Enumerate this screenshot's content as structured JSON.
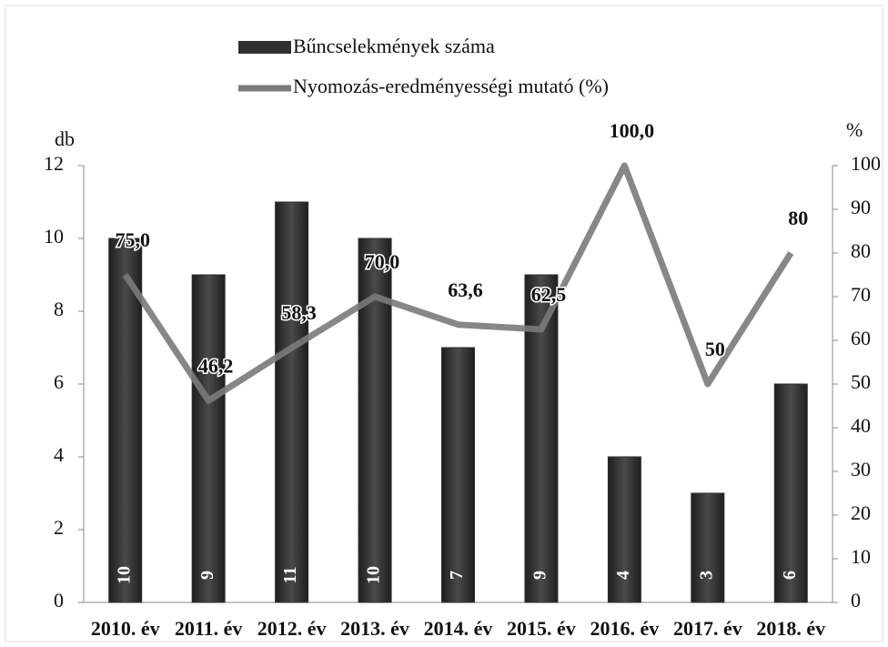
{
  "chart_data": {
    "type": "bar-line",
    "ylabel": "db",
    "y2label": "%",
    "categories": [
      "2010. év",
      "2011. év",
      "2012. év",
      "2013. év",
      "2014. év",
      "2015. év",
      "2016. év",
      "2017. év",
      "2018. év"
    ],
    "series": [
      {
        "name": "Bűncselekmények száma",
        "type": "bar",
        "color": "#2f2f2f",
        "values": [
          10,
          9,
          11,
          10,
          7,
          9,
          4,
          3,
          6
        ]
      },
      {
        "name": "Nyomozás-eredményességi mutató (%)",
        "type": "line",
        "axis": "y2",
        "color": "#7a7a7a",
        "values": [
          75.0,
          46.2,
          58.3,
          70.0,
          63.6,
          62.5,
          100.0,
          50,
          80
        ],
        "value_labels": [
          "75,0",
          "46,2",
          "58,3",
          "70,0",
          "63,6",
          "62,5",
          "100,0",
          "50",
          "80"
        ]
      }
    ],
    "ylim": [
      0,
      12
    ],
    "yticks": [
      0,
      2,
      4,
      6,
      8,
      10,
      12
    ],
    "y2lim": [
      0,
      100
    ],
    "y2ticks": [
      0,
      10,
      20,
      30,
      40,
      50,
      60,
      70,
      80,
      90,
      100
    ]
  }
}
